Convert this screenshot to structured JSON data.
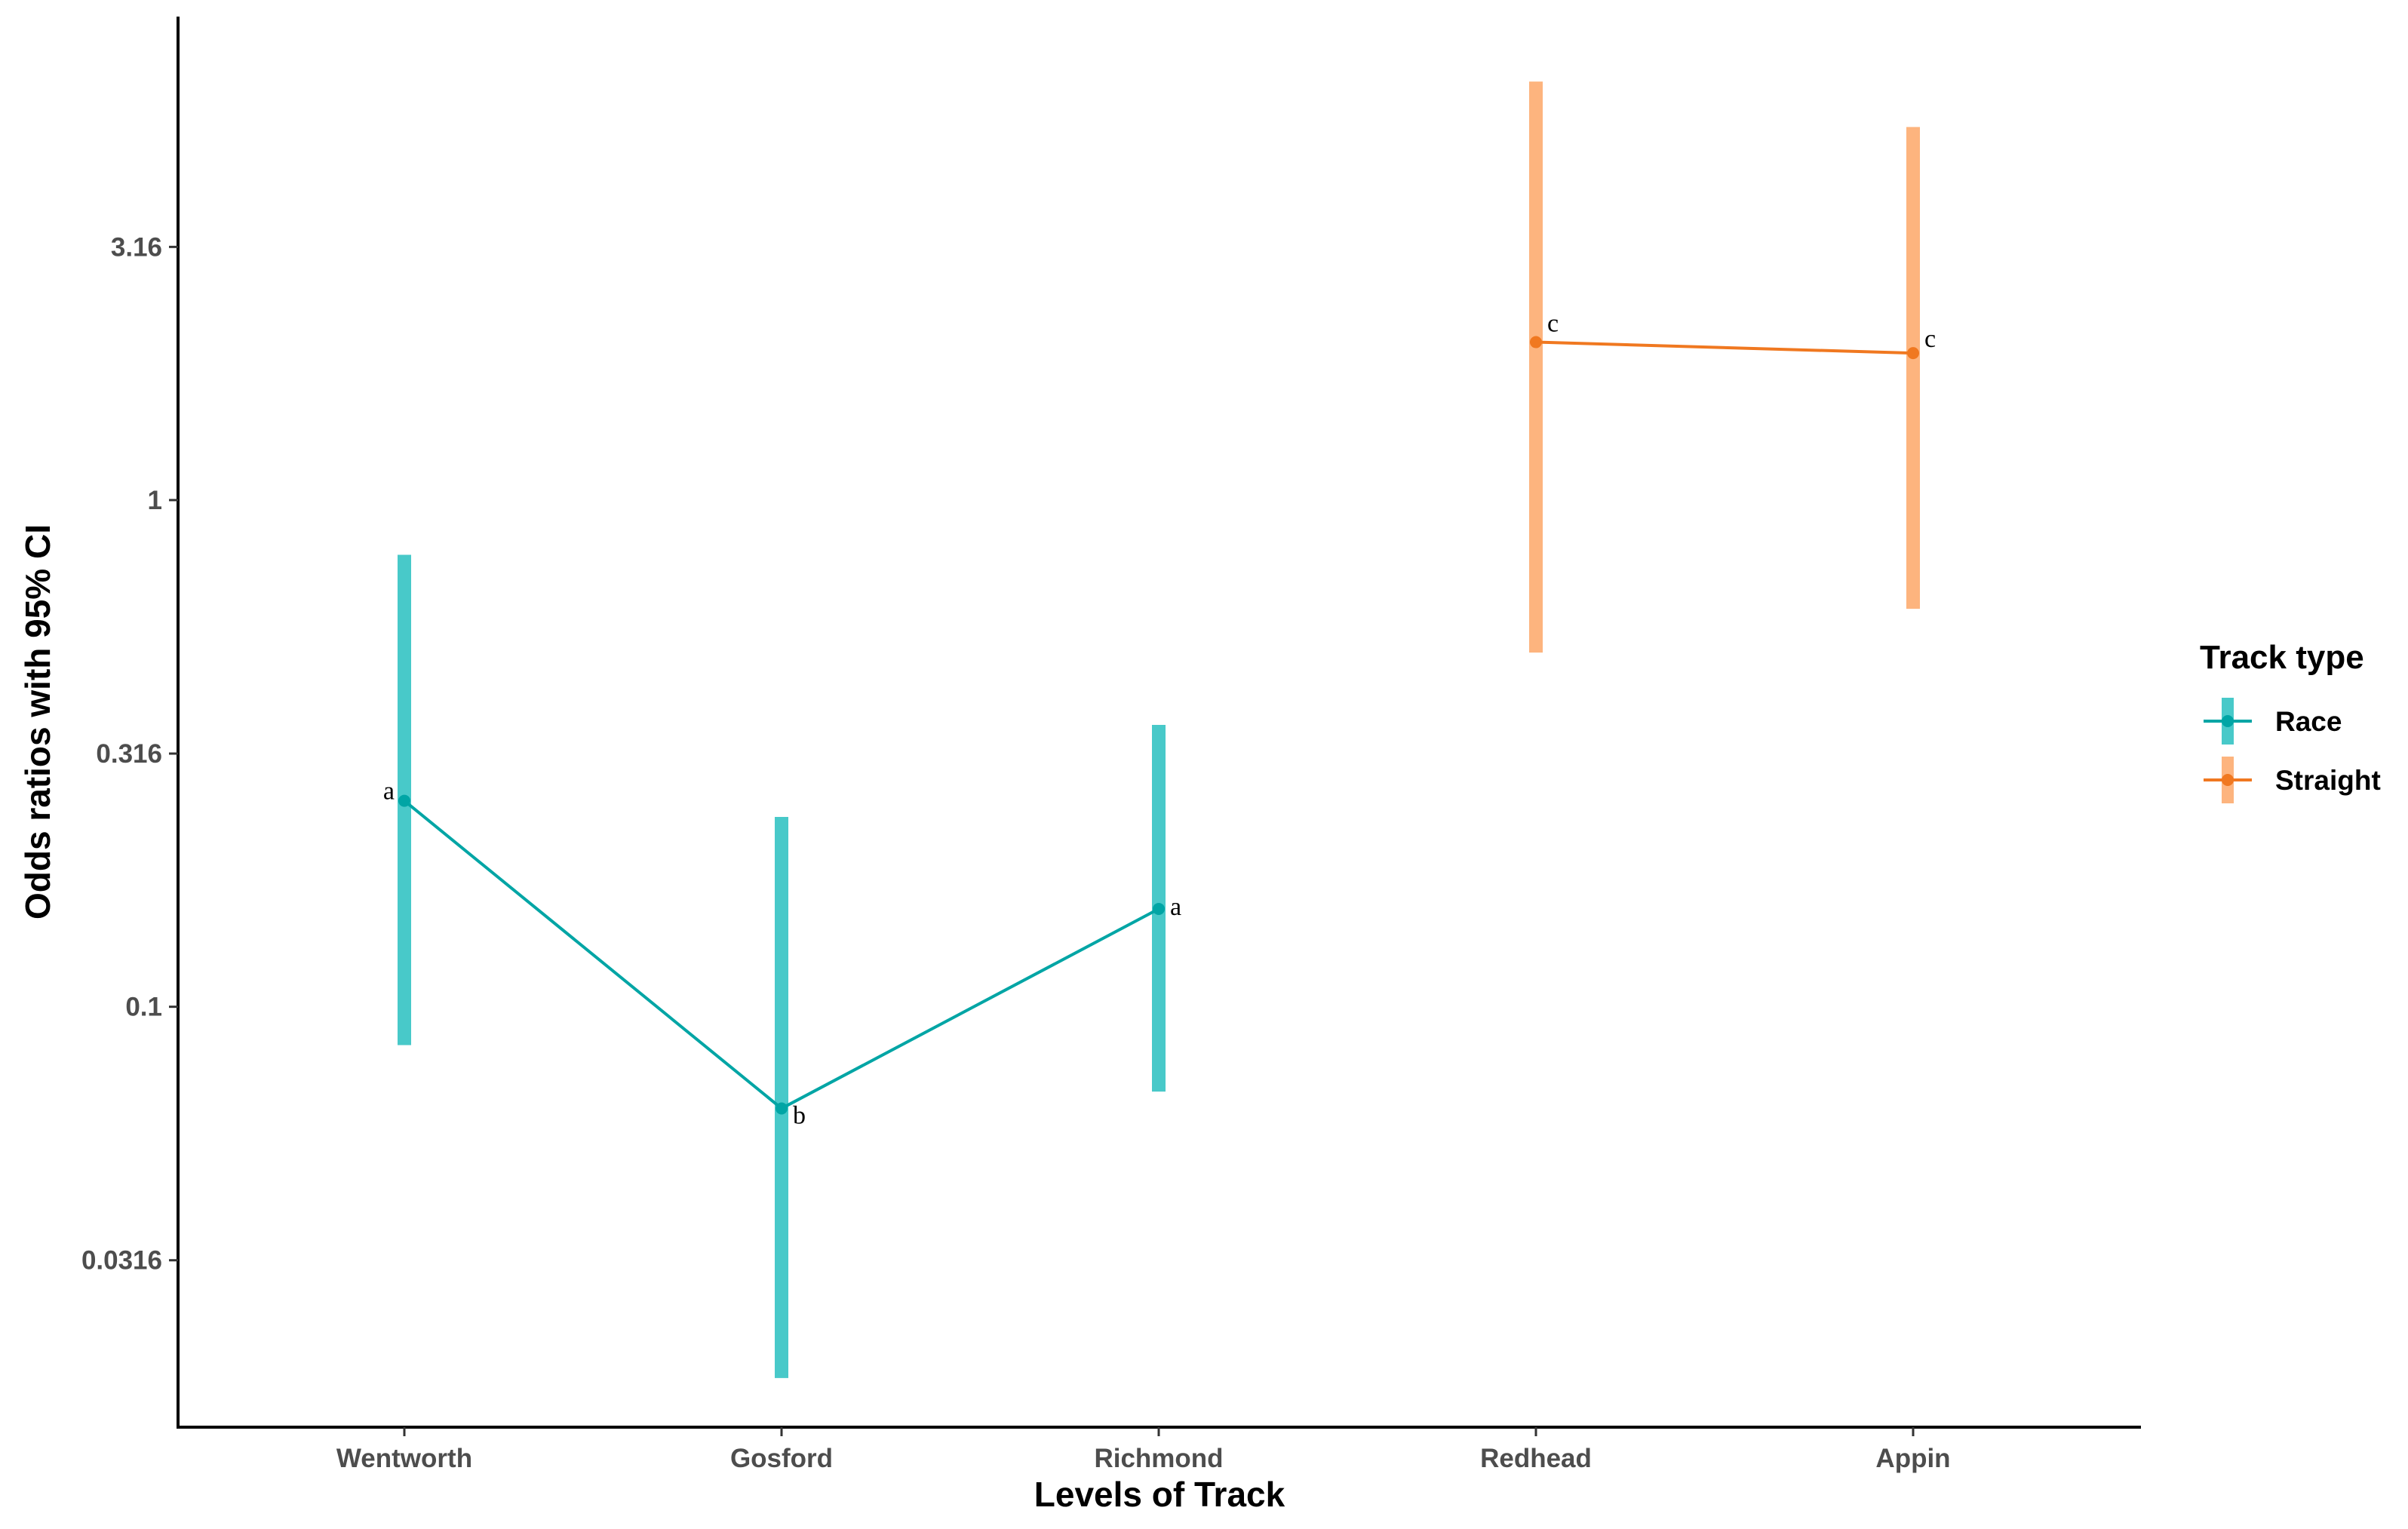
{
  "chart_data": {
    "type": "errorbar-line",
    "xlabel": "Levels of Track",
    "ylabel": "Odds ratios with 95% CI",
    "y_scale": "log10",
    "ylim": [
      0.0148,
      9.0
    ],
    "yticks": [
      {
        "value": 0.0316,
        "label": "0.0316"
      },
      {
        "value": 0.1,
        "label": "0.1"
      },
      {
        "value": 0.316,
        "label": "0.316"
      },
      {
        "value": 1,
        "label": "1"
      },
      {
        "value": 3.16,
        "label": "3.16"
      }
    ],
    "categories": [
      "Wentworth",
      "Gosford",
      "Richmond",
      "Redhead",
      "Appin"
    ],
    "grid": false,
    "legend": {
      "title": "Track type",
      "position": "right",
      "entries": [
        "Race",
        "Straight"
      ]
    },
    "series": [
      {
        "name": "Race",
        "color": "#00A5A5",
        "ci_color": "#48C9C9",
        "points": [
          {
            "x": "Wentworth",
            "estimate": 0.255,
            "lower": 0.084,
            "upper": 0.78,
            "label": "a"
          },
          {
            "x": "Gosford",
            "estimate": 0.063,
            "lower": 0.0185,
            "upper": 0.237,
            "label": "b"
          },
          {
            "x": "Richmond",
            "estimate": 0.156,
            "lower": 0.068,
            "upper": 0.36,
            "label": "a"
          }
        ]
      },
      {
        "name": "Straight",
        "color": "#F07820",
        "ci_color": "#FDB47E",
        "points": [
          {
            "x": "Redhead",
            "estimate": 2.05,
            "lower": 0.5,
            "upper": 6.7,
            "label": "c"
          },
          {
            "x": "Appin",
            "estimate": 1.95,
            "lower": 0.61,
            "upper": 5.45,
            "label": "c"
          }
        ]
      }
    ]
  }
}
